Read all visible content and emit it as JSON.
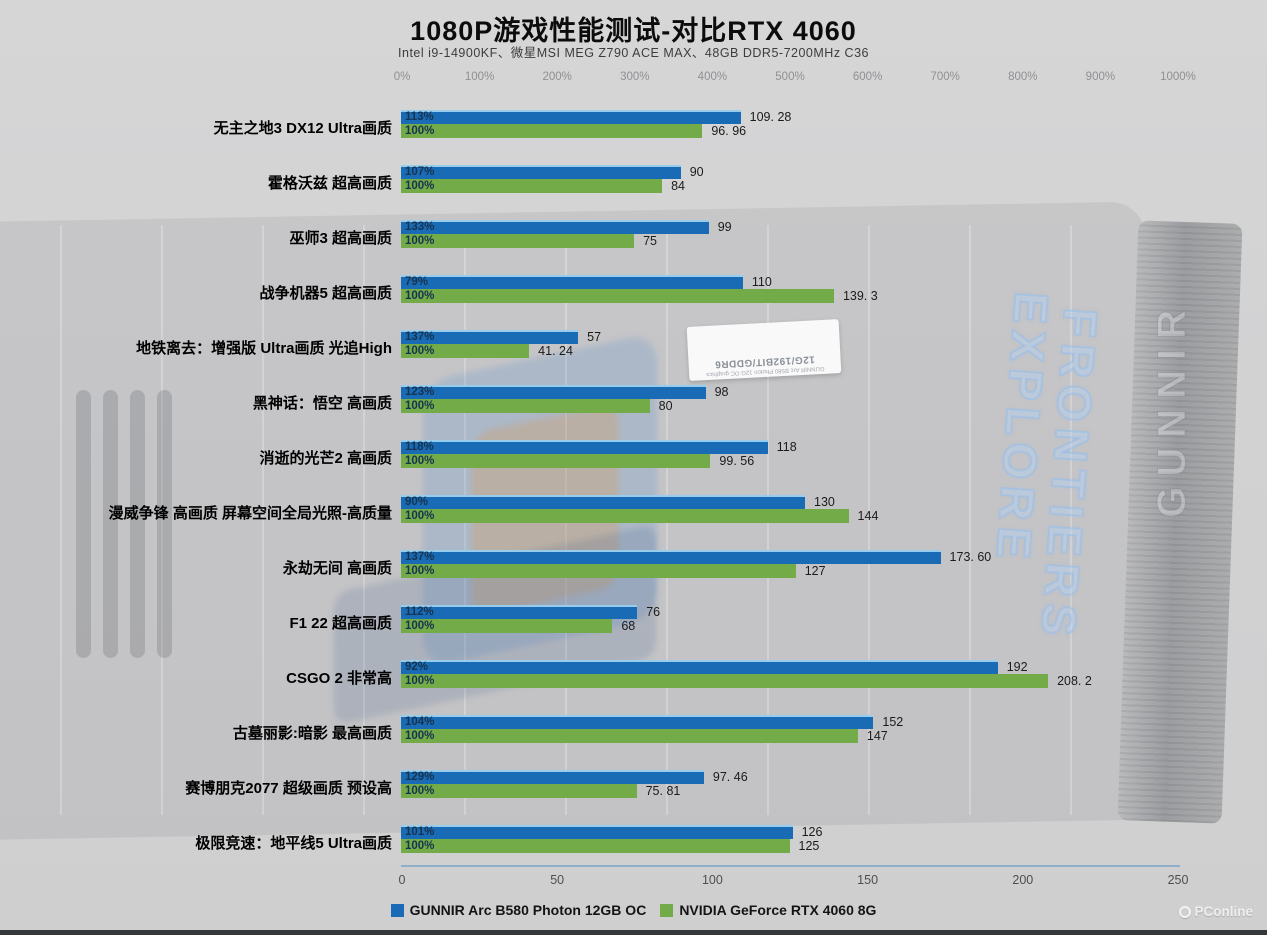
{
  "chart_data": {
    "type": "bar",
    "orientation": "horizontal-grouped",
    "title": "1080P游戏性能测试-对比RTX 4060",
    "subtitle": "Intel i9-14900KF、微星MSI MEG Z790 ACE MAX、48GB DDR5-7200MHz C36",
    "legend_position": "bottom",
    "grid": "off",
    "series": [
      {
        "name": "GUNNIR Arc B580 Photon 12GB OC",
        "color": "#1a6bb5"
      },
      {
        "name": "NVIDIA GeForce RTX 4060 8G",
        "color": "#73ab49"
      }
    ],
    "top_axis": {
      "unit": "percent-vs-RTX4060",
      "min": 0,
      "max": 1000,
      "ticks": [
        "0%",
        "100%",
        "200%",
        "300%",
        "400%",
        "500%",
        "600%",
        "700%",
        "800%",
        "900%",
        "1000%"
      ]
    },
    "bottom_axis": {
      "unit": "fps",
      "min": 0,
      "max": 250,
      "ticks": [
        "0",
        "50",
        "100",
        "150",
        "200",
        "250"
      ]
    },
    "rows": [
      {
        "game": "无主之地3 DX12 Ultra画质",
        "b580_pct": "113%",
        "b580_fps": 109.28,
        "b580_label": "109. 28",
        "rtx_pct": "100%",
        "rtx_fps": 96.96,
        "rtx_label": "96. 96"
      },
      {
        "game": "霍格沃兹 超高画质",
        "b580_pct": "107%",
        "b580_fps": 90,
        "b580_label": "90",
        "rtx_pct": "100%",
        "rtx_fps": 84,
        "rtx_label": "84"
      },
      {
        "game": "巫师3 超高画质",
        "b580_pct": "133%",
        "b580_fps": 99,
        "b580_label": "99",
        "rtx_pct": "100%",
        "rtx_fps": 75,
        "rtx_label": "75"
      },
      {
        "game": "战争机器5 超高画质",
        "b580_pct": "79%",
        "b580_fps": 110,
        "b580_label": "110",
        "rtx_pct": "100%",
        "rtx_fps": 139.3,
        "rtx_label": "139. 3"
      },
      {
        "game": "地铁离去：增强版 Ultra画质 光追High",
        "b580_pct": "137%",
        "b580_fps": 57,
        "b580_label": "57",
        "rtx_pct": "100%",
        "rtx_fps": 41.24,
        "rtx_label": "41. 24"
      },
      {
        "game": "黑神话：悟空 高画质",
        "b580_pct": "123%",
        "b580_fps": 98,
        "b580_label": "98",
        "rtx_pct": "100%",
        "rtx_fps": 80,
        "rtx_label": "80"
      },
      {
        "game": "消逝的光芒2 高画质",
        "b580_pct": "118%",
        "b580_fps": 118,
        "b580_label": "118",
        "rtx_pct": "100%",
        "rtx_fps": 99.56,
        "rtx_label": "99. 56"
      },
      {
        "game": "漫威争锋 高画质 屏幕空间全局光照-高质量",
        "b580_pct": "90%",
        "b580_fps": 130,
        "b580_label": "130",
        "rtx_pct": "100%",
        "rtx_fps": 144,
        "rtx_label": "144"
      },
      {
        "game": "永劫无间 高画质",
        "b580_pct": "137%",
        "b580_fps": 173.6,
        "b580_label": "173. 60",
        "rtx_pct": "100%",
        "rtx_fps": 127,
        "rtx_label": "127"
      },
      {
        "game": "F1 22 超高画质",
        "b580_pct": "112%",
        "b580_fps": 76,
        "b580_label": "76",
        "rtx_pct": "100%",
        "rtx_fps": 68,
        "rtx_label": "68"
      },
      {
        "game": "CSGO 2 非常高",
        "b580_pct": "92%",
        "b580_fps": 192,
        "b580_label": "192",
        "rtx_pct": "100%",
        "rtx_fps": 208.2,
        "rtx_label": "208. 2"
      },
      {
        "game": "古墓丽影:暗影 最高画质",
        "b580_pct": "104%",
        "b580_fps": 152,
        "b580_label": "152",
        "rtx_pct": "100%",
        "rtx_fps": 147,
        "rtx_label": "147"
      },
      {
        "game": "赛博朋克2077 超级画质 预设高",
        "b580_pct": "129%",
        "b580_fps": 97.46,
        "b580_label": "97. 46",
        "rtx_pct": "100%",
        "rtx_fps": 75.81,
        "rtx_label": "75. 81"
      },
      {
        "game": "极限竞速：地平线5 Ultra画质",
        "b580_pct": "101%",
        "b580_fps": 126,
        "b580_label": "126",
        "rtx_pct": "100%",
        "rtx_fps": 125,
        "rtx_label": "125"
      }
    ]
  },
  "watermark": {
    "site": "PConline"
  },
  "background": {
    "explore_text": "EXPLORE",
    "frontiers_text": "FRONTIERS",
    "gunnir_text": "GUNNIR",
    "sticker_line1": "12G/192BIT/GDDR6",
    "sticker_line2": "GUNNIR Arc B580 Photon 12G OC graphics"
  }
}
